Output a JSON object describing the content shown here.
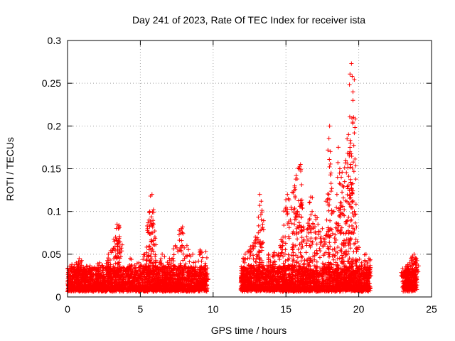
{
  "chart_data": {
    "type": "scatter",
    "title": "Day 241 of 2023, Rate Of TEC Index for receiver ista",
    "xlabel": "GPS time / hours",
    "ylabel": "ROTI / TECUs",
    "xlim": [
      0,
      25
    ],
    "ylim": [
      0,
      0.3
    ],
    "xticks": [
      0,
      5,
      10,
      15,
      20,
      25
    ],
    "yticks": [
      0,
      0.05,
      0.1,
      0.15,
      0.2,
      0.25,
      0.3
    ],
    "xtick_labels": [
      "0",
      "5",
      "10",
      "15",
      "20",
      "25"
    ],
    "ytick_labels": [
      "0",
      "0.05",
      "0.1",
      "0.15",
      "0.2",
      "0.25",
      "0.3"
    ],
    "grid": true,
    "marker": "+",
    "color": "#ff0000",
    "series": [
      {
        "name": "",
        "segments": [
          {
            "start": 0.0,
            "end": 9.6
          },
          {
            "start": 11.9,
            "end": 20.8
          },
          {
            "start": 23.0,
            "end": 24.0
          }
        ],
        "points": [
          [
            0.3,
            0.038
          ],
          [
            0.6,
            0.04
          ],
          [
            0.8,
            0.045
          ],
          [
            1.1,
            0.032
          ],
          [
            1.6,
            0.03
          ],
          [
            2.2,
            0.04
          ],
          [
            2.8,
            0.05
          ],
          [
            3.1,
            0.055
          ],
          [
            3.3,
            0.07
          ],
          [
            3.4,
            0.085
          ],
          [
            3.5,
            0.08
          ],
          [
            3.6,
            0.065
          ],
          [
            4.3,
            0.045
          ],
          [
            4.9,
            0.04
          ],
          [
            5.3,
            0.05
          ],
          [
            5.5,
            0.08
          ],
          [
            5.6,
            0.09
          ],
          [
            5.65,
            0.1
          ],
          [
            5.7,
            0.118
          ],
          [
            5.8,
            0.12
          ],
          [
            5.9,
            0.085
          ],
          [
            6.0,
            0.07
          ],
          [
            6.5,
            0.05
          ],
          [
            7.0,
            0.045
          ],
          [
            7.4,
            0.06
          ],
          [
            7.8,
            0.08
          ],
          [
            7.9,
            0.082
          ],
          [
            8.2,
            0.06
          ],
          [
            8.6,
            0.05
          ],
          [
            9.1,
            0.055
          ],
          [
            9.5,
            0.053
          ],
          [
            12.2,
            0.05
          ],
          [
            12.5,
            0.055
          ],
          [
            12.7,
            0.06
          ],
          [
            12.9,
            0.07
          ],
          [
            13.1,
            0.075
          ],
          [
            13.2,
            0.12
          ],
          [
            13.3,
            0.112
          ],
          [
            13.4,
            0.085
          ],
          [
            13.8,
            0.05
          ],
          [
            14.2,
            0.052
          ],
          [
            14.6,
            0.06
          ],
          [
            14.8,
            0.07
          ],
          [
            15.0,
            0.105
          ],
          [
            15.1,
            0.12
          ],
          [
            15.3,
            0.09
          ],
          [
            15.5,
            0.122
          ],
          [
            15.6,
            0.13
          ],
          [
            15.7,
            0.142
          ],
          [
            15.8,
            0.1
          ],
          [
            15.9,
            0.15
          ],
          [
            16.0,
            0.155
          ],
          [
            16.1,
            0.11
          ],
          [
            16.2,
            0.082
          ],
          [
            16.5,
            0.08
          ],
          [
            16.6,
            0.09
          ],
          [
            16.7,
            0.117
          ],
          [
            16.8,
            0.1
          ],
          [
            17.0,
            0.095
          ],
          [
            17.2,
            0.085
          ],
          [
            17.5,
            0.08
          ],
          [
            17.8,
            0.09
          ],
          [
            17.9,
            0.115
          ],
          [
            18.0,
            0.2
          ],
          [
            18.05,
            0.17
          ],
          [
            18.1,
            0.145
          ],
          [
            18.3,
            0.1
          ],
          [
            18.5,
            0.12
          ],
          [
            18.6,
            0.175
          ],
          [
            18.7,
            0.15
          ],
          [
            18.8,
            0.14
          ],
          [
            18.9,
            0.13
          ],
          [
            19.0,
            0.095
          ],
          [
            19.1,
            0.16
          ],
          [
            19.2,
            0.185
          ],
          [
            19.3,
            0.19
          ],
          [
            19.35,
            0.165
          ],
          [
            19.4,
            0.17
          ],
          [
            19.45,
            0.155
          ],
          [
            19.5,
            0.273
          ],
          [
            19.55,
            0.258
          ],
          [
            19.6,
            0.23
          ],
          [
            19.65,
            0.21
          ],
          [
            19.7,
            0.1
          ],
          [
            19.9,
            0.065
          ],
          [
            20.2,
            0.04
          ],
          [
            20.5,
            0.05
          ],
          [
            20.7,
            0.045
          ],
          [
            23.1,
            0.03
          ],
          [
            23.3,
            0.035
          ],
          [
            23.5,
            0.04
          ],
          [
            23.7,
            0.048
          ],
          [
            23.8,
            0.05
          ],
          [
            23.95,
            0.045
          ]
        ]
      }
    ]
  }
}
